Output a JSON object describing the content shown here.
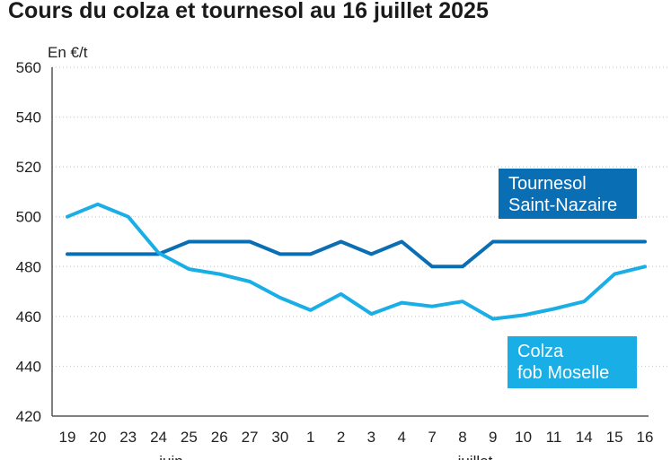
{
  "title": "Cours du colza et tournesol au 16 juillet 2025",
  "chart_data": {
    "type": "line",
    "title": "Cours du colza et tournesol au 16 juillet 2025",
    "ylabel": "En €/t",
    "xlabel": "",
    "ylim": [
      420,
      560
    ],
    "yticks": [
      420,
      440,
      460,
      480,
      500,
      520,
      540,
      560
    ],
    "grid": true,
    "categories": [
      "19",
      "20",
      "23",
      "24",
      "25",
      "26",
      "27",
      "30",
      "1",
      "2",
      "3",
      "4",
      "7",
      "8",
      "9",
      "10",
      "11",
      "14",
      "15",
      "16"
    ],
    "month_labels": [
      {
        "label": "juin",
        "category_index": 3
      },
      {
        "label": "juillet",
        "category_index": 13
      }
    ],
    "series": [
      {
        "name": "Tournesol Saint-Nazaire",
        "label_lines": [
          "Tournesol",
          "Saint-Nazaire"
        ],
        "color": "#0a6eb4",
        "values": [
          485,
          485,
          485,
          485,
          490,
          490,
          490,
          485,
          485,
          490,
          485,
          490,
          480,
          480,
          490,
          490,
          490,
          490,
          490,
          490
        ]
      },
      {
        "name": "Colza fob Moselle",
        "label_lines": [
          "Colza",
          "fob Moselle"
        ],
        "color": "#1aaee6",
        "values": [
          500,
          505,
          500,
          485.5,
          479,
          477,
          474,
          467.5,
          462.5,
          469,
          461,
          465.5,
          464,
          466,
          459,
          460.5,
          463,
          466,
          477,
          480
        ]
      }
    ]
  }
}
